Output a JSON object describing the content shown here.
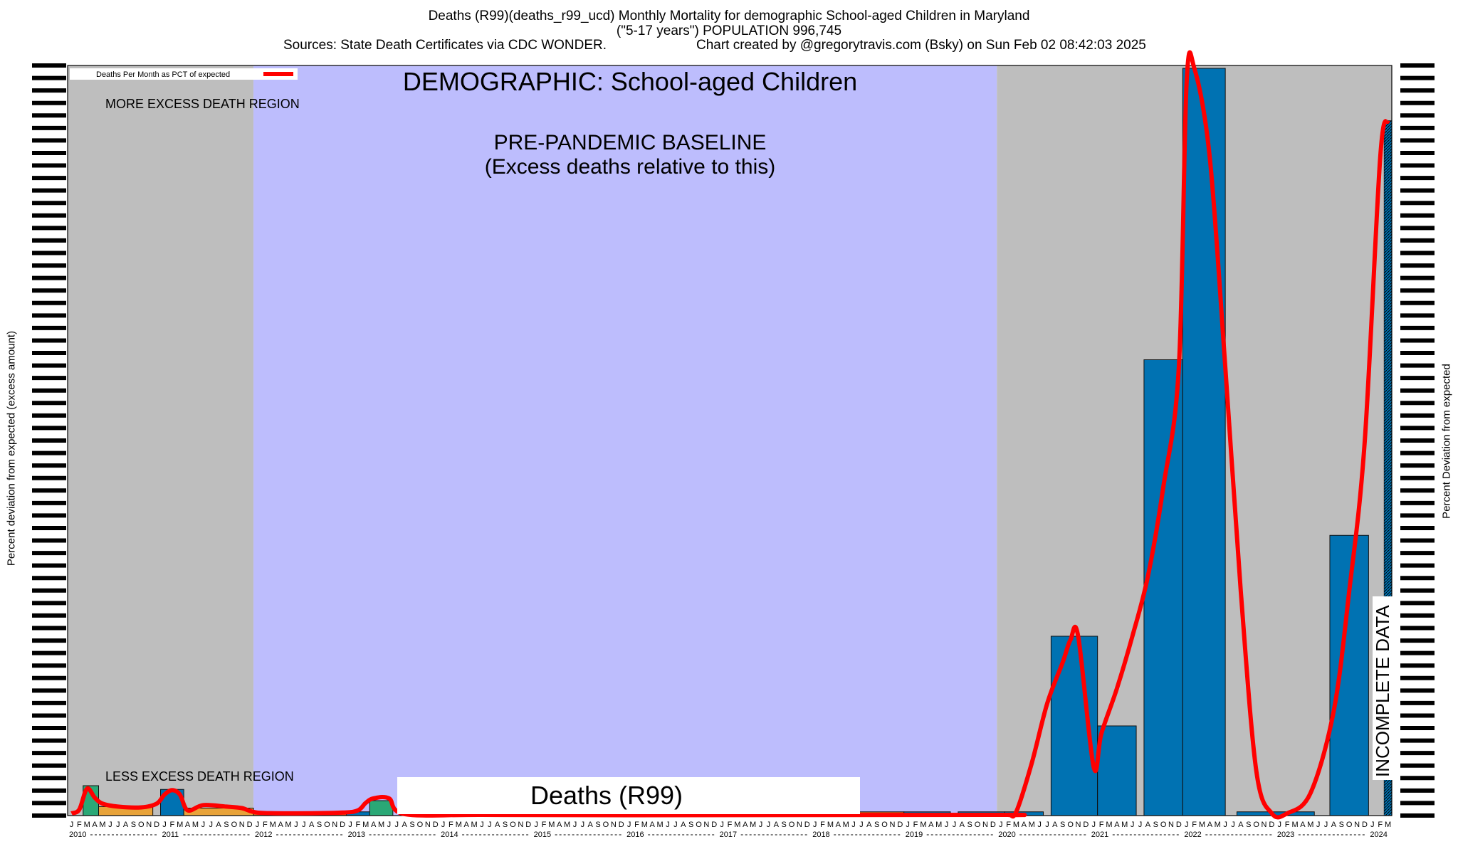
{
  "header": {
    "title_line1": "Deaths (R99)(deaths_r99_ucd) Monthly Mortality for demographic School-aged Children in Maryland",
    "title_line2": "(\"5-17 years\") POPULATION 996,745",
    "sources": "Sources: State Death Certificates via CDC WONDER.",
    "credit": "Chart created by @gregorytravis.com (Bsky) on Sun Feb 02 08:42:03 2025"
  },
  "chart_data": {
    "type": "bar",
    "title": "Deaths (R99)(deaths_r99_ucd) Monthly Mortality for demographic School-aged Children in Maryland",
    "ylabel_left": "Percent deviation from expected (excess amount)",
    "ylabel_right": "Percent Deviation from expected",
    "legend": {
      "label": "Deaths Per Month as PCT of expected",
      "position": "top-left",
      "color": "#ff0000"
    },
    "annotations": {
      "demographic": "DEMOGRAPHIC: School-aged Children",
      "baseline_line1": "PRE-PANDEMIC BASELINE",
      "baseline_line2": "(Excess deaths relative to this)",
      "more_excess": "MORE EXCESS DEATH REGION",
      "less_excess": "LESS EXCESS DEATH REGION",
      "cause_box": "Deaths (R99)",
      "incomplete": "INCOMPLETE DATA"
    },
    "regions": [
      {
        "name": "pre-baseline",
        "start": "2010-01",
        "end": "2011-12",
        "color": "#bebebe"
      },
      {
        "name": "baseline",
        "start": "2012-01",
        "end": "2019-12",
        "color": "#bdbdfd"
      },
      {
        "name": "post-baseline",
        "start": "2020-01",
        "end": "2024-03",
        "color": "#bebebe"
      }
    ],
    "year_labels": [
      "2010",
      "2011",
      "2012",
      "2013",
      "2014",
      "2015",
      "2016",
      "2017",
      "2018",
      "2019",
      "2020",
      "2021",
      "2022",
      "2023",
      "2024"
    ],
    "month_letters": [
      "J",
      "F",
      "M",
      "A",
      "M",
      "J",
      "J",
      "A",
      "S",
      "O",
      "N",
      "D"
    ],
    "last_month": "2024-03",
    "ylim": [
      0,
      100
    ],
    "bars": [
      {
        "label": "2010 Mar–Apr",
        "start": "2010-03",
        "months": 2,
        "value": 4,
        "color": "#2aa876"
      },
      {
        "label": "2010 May–Nov",
        "start": "2010-05",
        "months": 7,
        "value": 1.2,
        "color": "#e8a33a"
      },
      {
        "label": "2011 Jan–Mar",
        "start": "2011-01",
        "months": 3,
        "value": 3.5,
        "color": "#0072b2"
      },
      {
        "label": "2011 Apr–Dec",
        "start": "2011-04",
        "months": 9,
        "value": 1.0,
        "color": "#e8a33a"
      },
      {
        "label": "2012 Jan–Dec",
        "start": "2012-01",
        "months": 12,
        "value": 0.5,
        "color": "#d2691e"
      },
      {
        "label": "2013 Jan–Apr",
        "start": "2013-01",
        "months": 4,
        "value": 0.5,
        "color": "#0072b2"
      },
      {
        "label": "2013 Apr–Jun",
        "start": "2013-04",
        "months": 3,
        "value": 2.0,
        "color": "#2aa876"
      },
      {
        "label": "2018 Jun–Dec",
        "start": "2018-06",
        "months": 7,
        "value": 0.5,
        "color": "#d2691e"
      },
      {
        "label": "2019 Jan–Jun",
        "start": "2019-01",
        "months": 6,
        "value": 0.5,
        "color": "#0072b2"
      },
      {
        "label": "2019 Aug–Jan 2020",
        "start": "2019-08",
        "months": 6,
        "value": 0.5,
        "color": "#0072b2"
      },
      {
        "label": "2020 Feb–Jun",
        "start": "2020-02",
        "months": 5,
        "value": 0.5,
        "color": "#0072b2"
      },
      {
        "label": "2020 Aug–Jan 2021",
        "start": "2020-08",
        "months": 6,
        "value": 24,
        "color": "#0072b2"
      },
      {
        "label": "2021 Feb",
        "start": "2021-02",
        "months": 1,
        "value": 7,
        "color": "#0072b2"
      },
      {
        "label": "2021 Feb–Jun",
        "start": "2021-02",
        "months": 5,
        "value": 12,
        "color": "#0072b2"
      },
      {
        "label": "2021 Aug–Jan 2022",
        "start": "2021-08",
        "months": 5,
        "value": 61,
        "color": "#0072b2"
      },
      {
        "label": "2022 Jan–Jul",
        "start": "2022-01",
        "months": 5.5,
        "value": 100,
        "color": "#0072b2"
      },
      {
        "label": "2022 Aug–Jan 2023",
        "start": "2022-08",
        "months": 10,
        "value": 0.5,
        "color": "#0072b2"
      },
      {
        "label": "2023 Aug–Dec",
        "start": "2023-08",
        "months": 5,
        "value": 37.5,
        "color": "#0072b2"
      }
    ],
    "series": [
      {
        "name": "Deaths Per Month as PCT of expected",
        "color": "#ff0000",
        "points": [
          [
            "2010-01",
            0.3
          ],
          [
            "2010-02",
            0.8
          ],
          [
            "2010-03",
            3.6
          ],
          [
            "2010-04",
            2.4
          ],
          [
            "2010-05",
            1.6
          ],
          [
            "2010-07",
            1.2
          ],
          [
            "2010-10",
            1.1
          ],
          [
            "2010-12",
            1.6
          ],
          [
            "2011-01",
            2.8
          ],
          [
            "2011-02",
            3.4
          ],
          [
            "2011-03",
            2.8
          ],
          [
            "2011-04",
            0.7
          ],
          [
            "2011-06",
            1.4
          ],
          [
            "2011-09",
            1.2
          ],
          [
            "2011-11",
            1.0
          ],
          [
            "2012-01",
            0.4
          ],
          [
            "2012-06",
            0.3
          ],
          [
            "2012-12",
            0.4
          ],
          [
            "2013-02",
            0.7
          ],
          [
            "2013-03",
            1.7
          ],
          [
            "2013-04",
            2.3
          ],
          [
            "2013-06",
            2.3
          ],
          [
            "2013-08",
            0.2
          ],
          [
            "2014-06",
            0.1
          ],
          [
            "2016-01",
            0.05
          ],
          [
            "2019-12",
            0.1
          ],
          [
            "2020-02",
            0.1
          ],
          [
            "2020-03",
            0.5
          ],
          [
            "2020-05",
            7
          ],
          [
            "2020-07",
            15
          ],
          [
            "2020-09",
            20.5
          ],
          [
            "2020-10",
            23.5
          ],
          [
            "2020-11",
            24
          ],
          [
            "2021-01",
            6.5
          ],
          [
            "2021-02",
            11
          ],
          [
            "2021-04",
            17
          ],
          [
            "2021-06",
            24
          ],
          [
            "2021-08",
            32
          ],
          [
            "2021-10",
            44
          ],
          [
            "2021-12",
            60
          ],
          [
            "2022-01",
            98
          ],
          [
            "2022-02",
            100
          ],
          [
            "2022-04",
            88
          ],
          [
            "2022-06",
            60
          ],
          [
            "2022-08",
            30
          ],
          [
            "2022-10",
            6
          ],
          [
            "2022-12",
            0.3
          ],
          [
            "2023-02",
            0.3
          ],
          [
            "2023-05",
            3
          ],
          [
            "2023-08",
            14
          ],
          [
            "2023-10",
            30
          ],
          [
            "2023-12",
            50
          ],
          [
            "2024-02",
            88
          ],
          [
            "2024-03",
            93
          ]
        ]
      }
    ]
  }
}
